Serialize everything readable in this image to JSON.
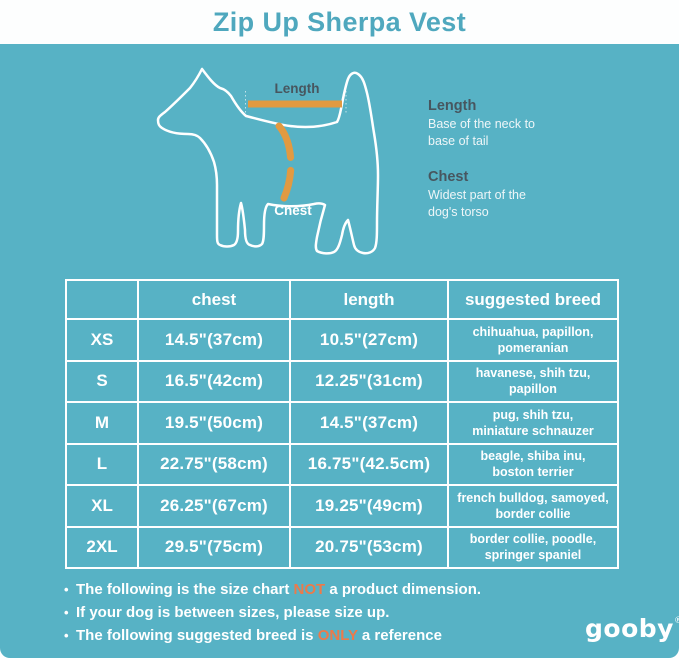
{
  "header": {
    "title": "Zip Up Sherpa Vest"
  },
  "colors": {
    "background_teal": "#57b2c5",
    "header_band": "#fdfefe",
    "title_text": "#4fa8be",
    "dark_slate_text": "#47565f",
    "white_text": "#ffffff",
    "measure_orange": "#e29a41",
    "emphasis_orange": "#ec7a4a"
  },
  "diagram": {
    "length_label": "Length",
    "chest_label": "Chest",
    "legend": [
      {
        "term": "Length",
        "desc_lines": [
          "Base of the neck to",
          "base of tail"
        ]
      },
      {
        "term": "Chest",
        "desc_lines": [
          "Widest part of the",
          "dog's torso"
        ]
      }
    ]
  },
  "table": {
    "headers": [
      "",
      "chest",
      "length",
      "suggested breed"
    ],
    "rows": [
      {
        "size": "XS",
        "chest": "14.5\"(37cm)",
        "length": "10.5\"(27cm)",
        "breed_lines": [
          "chihuahua, papillon,",
          "pomeranian"
        ]
      },
      {
        "size": "S",
        "chest": "16.5\"(42cm)",
        "length": "12.25\"(31cm)",
        "breed_lines": [
          "havanese, shih tzu,",
          "papillon"
        ]
      },
      {
        "size": "M",
        "chest": "19.5\"(50cm)",
        "length": "14.5\"(37cm)",
        "breed_lines": [
          "pug, shih tzu,",
          "miniature schnauzer"
        ]
      },
      {
        "size": "L",
        "chest": "22.75\"(58cm)",
        "length": "16.75\"(42.5cm)",
        "breed_lines": [
          "beagle, shiba inu,",
          "boston terrier"
        ]
      },
      {
        "size": "XL",
        "chest": "26.25\"(67cm)",
        "length": "19.25\"(49cm)",
        "breed_lines": [
          "french bulldog, samoyed,",
          "border collie"
        ]
      },
      {
        "size": "2XL",
        "chest": "29.5\"(75cm)",
        "length": "20.75\"(53cm)",
        "breed_lines": [
          "border collie, poodle,",
          "springer spaniel"
        ]
      }
    ]
  },
  "notes": [
    {
      "bullet": "•",
      "pre": "The following is the size chart ",
      "em": "NOT",
      "post": " a product dimension."
    },
    {
      "bullet": "•",
      "pre": "If your dog is between sizes, please size up.",
      "em": "",
      "post": ""
    },
    {
      "bullet": "•",
      "pre": "The following suggested breed is ",
      "em": "ONLY",
      "post": " a reference"
    }
  ],
  "logo": {
    "text": "gooby",
    "reg": "®"
  }
}
